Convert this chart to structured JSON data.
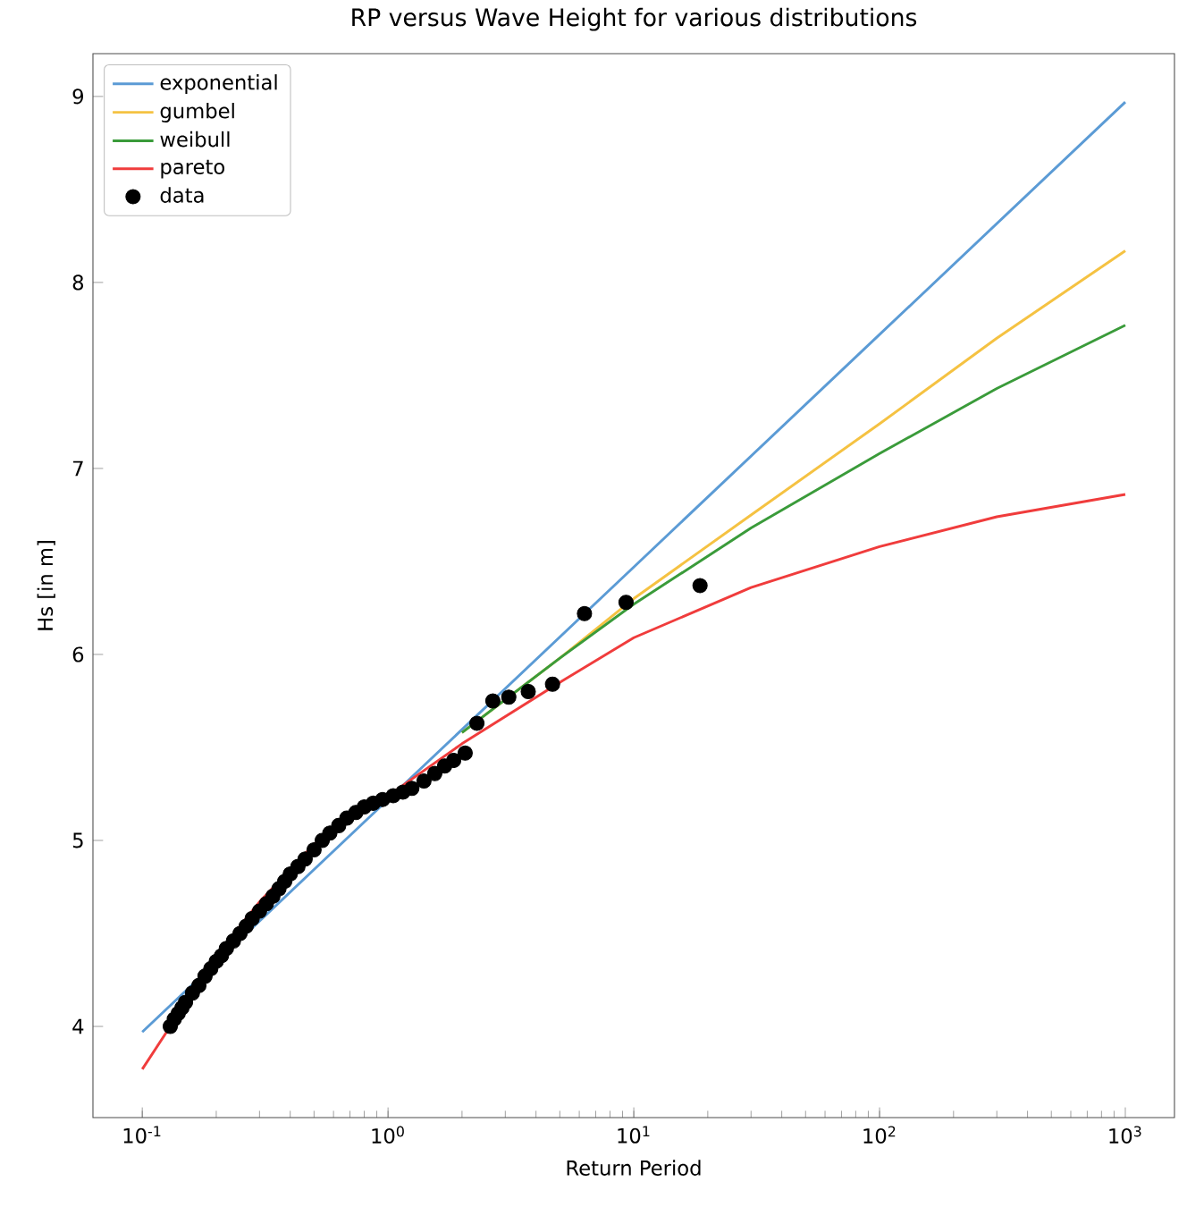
{
  "chart_data": {
    "type": "line",
    "title": "RP versus Wave Height for various distributions",
    "xlabel": "Return Period",
    "ylabel": "Hs [in m]",
    "log": "x",
    "grid": false,
    "legend": "top left",
    "xlim": [
      0.063,
      1585
    ],
    "ylim": [
      3.51,
      9.23
    ],
    "xticks": [
      {
        "value": 0.1,
        "label": "10$^{-1}$"
      },
      {
        "value": 1,
        "label": "10$^{0}$"
      },
      {
        "value": 10,
        "label": "10$^{1}$"
      },
      {
        "value": 100,
        "label": "10$^{2}$"
      },
      {
        "value": 1000,
        "label": "10$^{3}$"
      }
    ],
    "yticks": [
      4,
      5,
      6,
      7,
      8,
      9
    ],
    "series": [
      {
        "name": "exponential",
        "color": "#5b9bd5",
        "x": [
          0.1,
          1,
          10,
          100,
          1000
        ],
        "values": [
          3.97,
          5.22,
          6.47,
          7.72,
          8.97
        ]
      },
      {
        "name": "gumbel",
        "color": "#f5c242",
        "x": [
          2,
          5,
          10,
          30,
          100,
          300,
          1000
        ],
        "values": [
          5.58,
          5.98,
          6.3,
          6.75,
          7.24,
          7.7,
          8.17
        ]
      },
      {
        "name": "weibull",
        "color": "#3a9b3a",
        "x": [
          2,
          5,
          10,
          30,
          100,
          300,
          1000
        ],
        "values": [
          5.58,
          5.98,
          6.27,
          6.68,
          7.08,
          7.43,
          7.77
        ]
      },
      {
        "name": "pareto",
        "color": "#f03c3c",
        "x": [
          0.1,
          0.13,
          0.2,
          0.3,
          0.5,
          1,
          2,
          5,
          10,
          30,
          100,
          300,
          1000
        ],
        "values": [
          3.77,
          4.0,
          4.38,
          4.67,
          4.98,
          5.24,
          5.52,
          5.85,
          6.09,
          6.36,
          6.58,
          6.74,
          6.86
        ]
      },
      {
        "name": "data",
        "type": "scatter",
        "marker": "circle",
        "color": "#000000",
        "x": [
          0.13,
          0.135,
          0.14,
          0.145,
          0.15,
          0.16,
          0.17,
          0.18,
          0.19,
          0.2,
          0.21,
          0.22,
          0.235,
          0.25,
          0.265,
          0.28,
          0.3,
          0.32,
          0.34,
          0.36,
          0.38,
          0.4,
          0.43,
          0.46,
          0.5,
          0.54,
          0.58,
          0.63,
          0.68,
          0.74,
          0.8,
          0.87,
          0.95,
          1.05,
          1.15,
          1.25,
          1.4,
          1.55,
          1.7,
          1.85,
          2.06,
          2.3,
          2.67,
          3.1,
          3.72,
          4.67,
          6.3,
          9.3,
          18.6
        ],
        "values": [
          4.0,
          4.04,
          4.07,
          4.1,
          4.13,
          4.18,
          4.22,
          4.27,
          4.31,
          4.35,
          4.38,
          4.42,
          4.46,
          4.5,
          4.54,
          4.58,
          4.62,
          4.66,
          4.7,
          4.74,
          4.78,
          4.82,
          4.86,
          4.9,
          4.95,
          5.0,
          5.04,
          5.08,
          5.12,
          5.15,
          5.18,
          5.2,
          5.22,
          5.24,
          5.26,
          5.28,
          5.32,
          5.36,
          5.4,
          5.43,
          5.47,
          5.63,
          5.75,
          5.77,
          5.8,
          5.84,
          6.22,
          6.28,
          6.37
        ]
      }
    ]
  }
}
